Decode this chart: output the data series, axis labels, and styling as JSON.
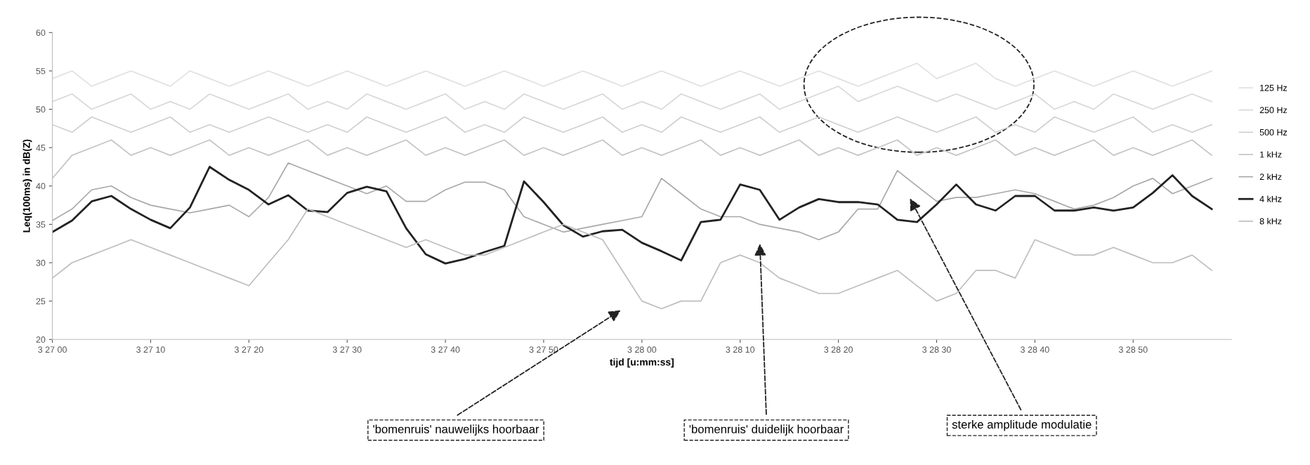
{
  "chart_data": {
    "type": "line",
    "xlabel": "tijd [u:mm:ss]",
    "ylabel": "Leq(100ms) in dB(Z)",
    "categories": [
      "3 27 00",
      null,
      null,
      null,
      null,
      "3 27 10",
      null,
      null,
      null,
      null,
      "3 27 20",
      null,
      null,
      null,
      null,
      "3 27 30",
      null,
      null,
      null,
      null,
      "3 27 40",
      null,
      null,
      null,
      null,
      "3 27 50",
      null,
      null,
      null,
      null,
      "3 28 00",
      null,
      null,
      null,
      null,
      "3 28 10",
      null,
      null,
      null,
      null,
      "3 28 20",
      null,
      null,
      null,
      null,
      "3 28 30",
      null,
      null,
      null,
      null,
      "3 28 40",
      null,
      null,
      null,
      null,
      "3 28 50",
      null,
      null,
      null,
      null
    ],
    "series": [
      {
        "name": "125 Hz",
        "color": "#e0e0e0",
        "values": [
          54,
          55,
          53,
          54,
          55,
          54,
          53,
          55,
          54,
          53,
          54,
          55,
          54,
          53,
          54,
          55,
          54,
          53,
          54,
          55,
          54,
          53,
          54,
          55,
          54,
          53,
          54,
          55,
          54,
          53,
          54,
          55,
          54,
          53,
          54,
          55,
          54,
          53,
          54,
          55,
          54,
          53,
          54,
          55,
          56,
          54,
          55,
          56,
          54,
          53,
          54,
          55,
          54,
          53,
          54,
          55,
          54,
          53,
          54,
          55
        ]
      },
      {
        "name": "250 Hz",
        "color": "#d8d8d8",
        "values": [
          51,
          52,
          50,
          51,
          52,
          50,
          51,
          50,
          52,
          51,
          50,
          51,
          52,
          50,
          51,
          50,
          52,
          51,
          50,
          51,
          52,
          50,
          51,
          50,
          52,
          51,
          50,
          51,
          52,
          50,
          51,
          50,
          52,
          51,
          50,
          51,
          52,
          50,
          51,
          52,
          53,
          51,
          52,
          53,
          52,
          51,
          52,
          51,
          50,
          51,
          52,
          50,
          51,
          50,
          52,
          51,
          50,
          51,
          52,
          51
        ]
      },
      {
        "name": "500 Hz",
        "color": "#cfcfcf",
        "values": [
          48,
          47,
          49,
          48,
          47,
          48,
          49,
          47,
          48,
          47,
          48,
          49,
          48,
          47,
          48,
          47,
          49,
          48,
          47,
          48,
          49,
          47,
          48,
          47,
          49,
          48,
          47,
          48,
          49,
          47,
          48,
          47,
          49,
          48,
          47,
          48,
          49,
          47,
          48,
          49,
          48,
          47,
          48,
          49,
          48,
          47,
          48,
          49,
          47,
          48,
          47,
          49,
          48,
          47,
          48,
          49,
          47,
          48,
          47,
          48
        ]
      },
      {
        "name": "1 kHz",
        "color": "#c4c4c4",
        "values": [
          41,
          44,
          45,
          46,
          44,
          45,
          44,
          45,
          46,
          44,
          45,
          44,
          45,
          46,
          44,
          45,
          44,
          45,
          46,
          44,
          45,
          44,
          45,
          46,
          44,
          45,
          44,
          45,
          46,
          44,
          45,
          44,
          45,
          46,
          44,
          45,
          44,
          45,
          46,
          44,
          45,
          44,
          45,
          46,
          44,
          45,
          44,
          45,
          46,
          44,
          45,
          44,
          45,
          46,
          44,
          45,
          44,
          45,
          46,
          44
        ]
      },
      {
        "name": "2 kHz",
        "color": "#a8a8a8",
        "values": [
          35.5,
          37,
          39.5,
          40,
          38.5,
          37.5,
          37,
          36.5,
          37,
          37.5,
          36,
          38.5,
          43,
          42,
          41,
          40,
          39,
          40,
          38,
          38,
          39.5,
          40.5,
          40.5,
          39.5,
          36,
          35,
          34,
          34.5,
          35,
          35.5,
          36,
          41,
          39,
          37,
          36,
          36,
          35,
          34.5,
          34,
          33,
          34,
          37,
          37,
          42,
          40,
          38,
          38.5,
          38.5,
          39,
          39.5,
          39,
          38,
          37,
          37.5,
          38.5,
          40,
          41,
          39,
          40,
          41
        ]
      },
      {
        "name": "4 kHz",
        "color": "#222222",
        "values": [
          34,
          35.5,
          38,
          38.7,
          37,
          35.6,
          34.5,
          37.2,
          42.5,
          40.8,
          39.5,
          37.6,
          38.8,
          36.8,
          36.6,
          39.1,
          39.9,
          39.3,
          34.5,
          31.1,
          29.9,
          30.5,
          31.4,
          32.2,
          40.6,
          37.9,
          34.9,
          33.4,
          34.1,
          34.3,
          32.6,
          31.5,
          30.3,
          35.3,
          35.6,
          40.2,
          39.5,
          35.6,
          37.2,
          38.3,
          37.9,
          37.9,
          37.6,
          35.6,
          35.3,
          37.6,
          40.2,
          37.6,
          36.8,
          38.7,
          38.7,
          36.8,
          36.8,
          37.2,
          36.8,
          37.2,
          39.1,
          41.4,
          38.7,
          37
        ]
      },
      {
        "name": "8 kHz",
        "color": "#bdbdbd",
        "values": [
          28,
          30,
          31,
          32,
          33,
          32,
          31,
          30,
          29,
          28,
          27,
          30,
          33,
          37,
          36,
          35,
          34,
          33,
          32,
          33,
          32,
          31,
          31,
          32,
          33,
          34,
          35,
          34,
          33,
          29,
          25,
          24,
          25,
          25,
          30,
          31,
          30,
          28,
          27,
          26,
          26,
          27,
          28,
          29,
          27,
          25,
          26,
          29,
          29,
          28,
          33,
          32,
          31,
          31,
          32,
          31,
          30,
          30,
          31,
          29
        ]
      }
    ],
    "ylim": [
      20,
      60
    ],
    "yticks": [
      20,
      25,
      30,
      35,
      40,
      45,
      50,
      55,
      60
    ],
    "grid": false,
    "legend": "right",
    "annotations": [
      "'bomenruis' nauwelijks hoorbaar",
      "'bomenruis' duidelijk hoorbaar",
      "sterke amplitude modulatie"
    ]
  }
}
